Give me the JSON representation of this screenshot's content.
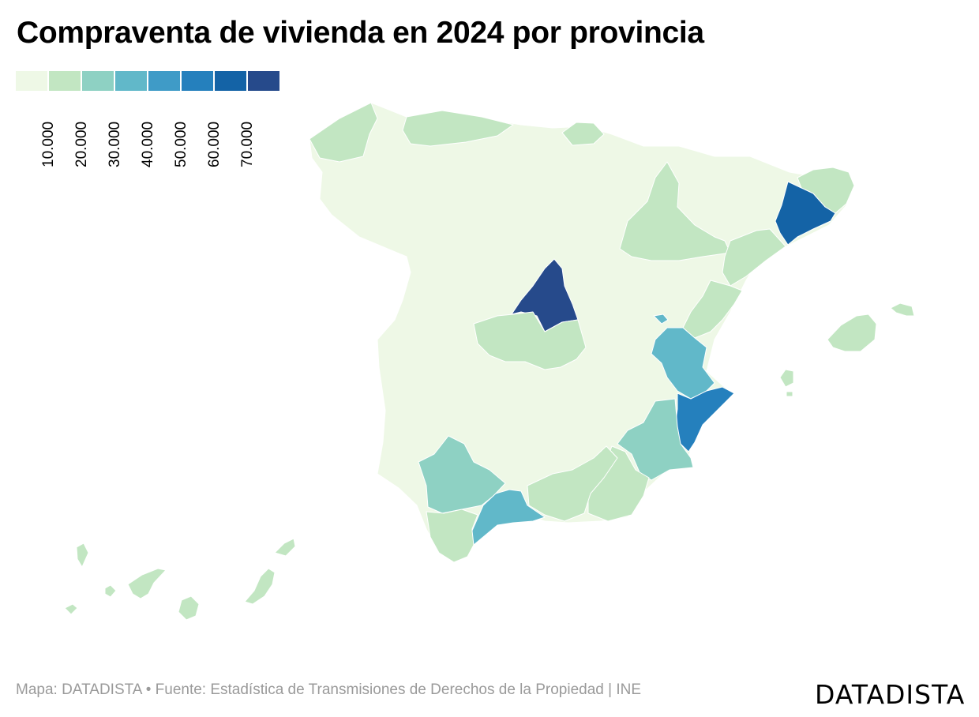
{
  "title": "Compraventa de vivienda en 2024 por provincia",
  "legend": {
    "colors": [
      "#eef8e6",
      "#c2e6c2",
      "#8ed1c3",
      "#61b8c9",
      "#3f9bc7",
      "#2580bd",
      "#1463a6",
      "#264a8b"
    ],
    "labels": [
      "10.000",
      "20.000",
      "30.000",
      "40.000",
      "50.000",
      "60.000",
      "70.000"
    ]
  },
  "footer": {
    "source": "Mapa: DATADISTA • Fuente: Estadística de Transmisiones de Derechos de la Propiedad | INE",
    "logo": "DATADISTA"
  },
  "map": {
    "type": "choropleth",
    "regions": [
      {
        "name": "Galicia west",
        "class": 1
      },
      {
        "name": "Asturias",
        "class": 1
      },
      {
        "name": "Cantabria",
        "class": 1
      },
      {
        "name": "Zaragoza",
        "class": 1
      },
      {
        "name": "Tarragona",
        "class": 1
      },
      {
        "name": "Girona",
        "class": 1
      },
      {
        "name": "Barcelona",
        "class": 6
      },
      {
        "name": "Madrid",
        "class": 7
      },
      {
        "name": "Toledo",
        "class": 1
      },
      {
        "name": "Castellón",
        "class": 1
      },
      {
        "name": "Valencia",
        "class": 3
      },
      {
        "name": "Alicante",
        "class": 5
      },
      {
        "name": "Murcia",
        "class": 2
      },
      {
        "name": "Almería",
        "class": 1
      },
      {
        "name": "Granada",
        "class": 1
      },
      {
        "name": "Sevilla",
        "class": 2
      },
      {
        "name": "Cádiz",
        "class": 1
      },
      {
        "name": "Málaga",
        "class": 3
      },
      {
        "name": "Baleares",
        "class": 1
      },
      {
        "name": "Tenerife",
        "class": 1
      },
      {
        "name": "Gran Canaria",
        "class": 1
      },
      {
        "name": "Canarias east",
        "class": 1
      }
    ]
  }
}
